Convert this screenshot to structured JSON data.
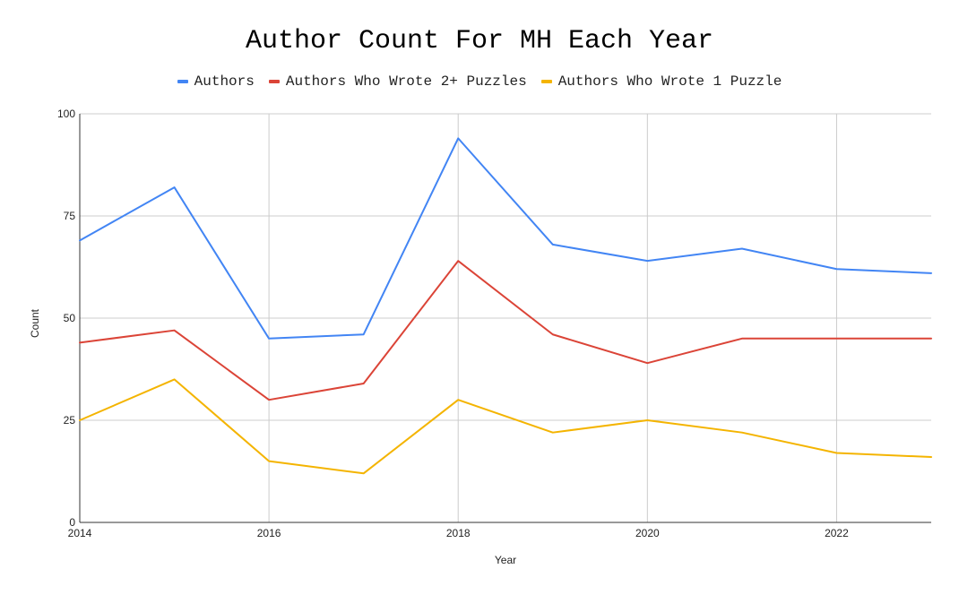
{
  "chart_data": {
    "type": "line",
    "title": "Author Count For MH Each Year",
    "xlabel": "Year",
    "ylabel": "Count",
    "x": [
      2014,
      2015,
      2016,
      2017,
      2018,
      2019,
      2020,
      2021,
      2022,
      2023
    ],
    "xlim": [
      2014,
      2023
    ],
    "ylim": [
      0,
      100
    ],
    "x_ticks": [
      "2014",
      "2016",
      "2018",
      "2020",
      "2022"
    ],
    "y_ticks": [
      "0",
      "25",
      "50",
      "75",
      "100"
    ],
    "grid": true,
    "legend_position": "top",
    "series": [
      {
        "name": "Authors",
        "color": "#4285f4",
        "values": [
          69,
          82,
          45,
          46,
          94,
          68,
          64,
          67,
          62,
          61
        ]
      },
      {
        "name": "Authors Who Wrote 2+ Puzzles",
        "color": "#db4437",
        "values": [
          44,
          47,
          30,
          34,
          64,
          46,
          39,
          45,
          45,
          45
        ]
      },
      {
        "name": "Authors Who Wrote 1 Puzzle",
        "color": "#f4b400",
        "values": [
          25,
          35,
          15,
          12,
          30,
          22,
          25,
          22,
          17,
          16
        ]
      }
    ]
  }
}
